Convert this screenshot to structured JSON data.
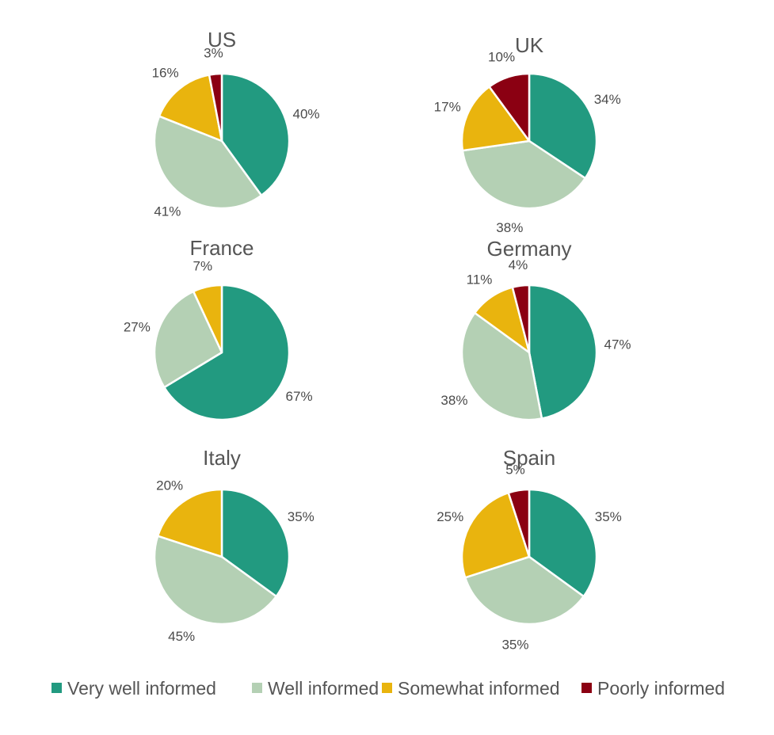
{
  "chart_data": {
    "type": "pie",
    "legend": {
      "placement": "bottom",
      "entries": [
        {
          "name": "Very well informed",
          "color": "#229A80"
        },
        {
          "name": "Well informed",
          "color": "#B4D0B4"
        },
        {
          "name": "Somewhat informed",
          "color": "#E9B40E"
        },
        {
          "name": "Poorly informed",
          "color": "#8B0012"
        }
      ]
    },
    "categories": [
      "Very well informed",
      "Well informed",
      "Somewhat informed",
      "Poorly informed"
    ],
    "pies": [
      {
        "title": "US",
        "values": [
          40,
          41,
          16,
          3
        ],
        "labels": [
          "40%",
          "41%",
          "16%",
          "3%"
        ]
      },
      {
        "title": "UK",
        "values": [
          34,
          38,
          17,
          10
        ],
        "labels": [
          "34%",
          "38%",
          "17%",
          "10%"
        ]
      },
      {
        "title": "France",
        "values": [
          67,
          27,
          7,
          0
        ],
        "labels": [
          "67%",
          "27%",
          "7%",
          ""
        ]
      },
      {
        "title": "Germany",
        "values": [
          47,
          38,
          11,
          4
        ],
        "labels": [
          "47%",
          "38%",
          "11%",
          "4%"
        ]
      },
      {
        "title": "Italy",
        "values": [
          35,
          45,
          20,
          0
        ],
        "labels": [
          "35%",
          "45%",
          "20%",
          ""
        ]
      },
      {
        "title": "Spain",
        "values": [
          35,
          35,
          25,
          5
        ],
        "labels": [
          "35%",
          "35%",
          "25%",
          "5%"
        ]
      }
    ]
  }
}
